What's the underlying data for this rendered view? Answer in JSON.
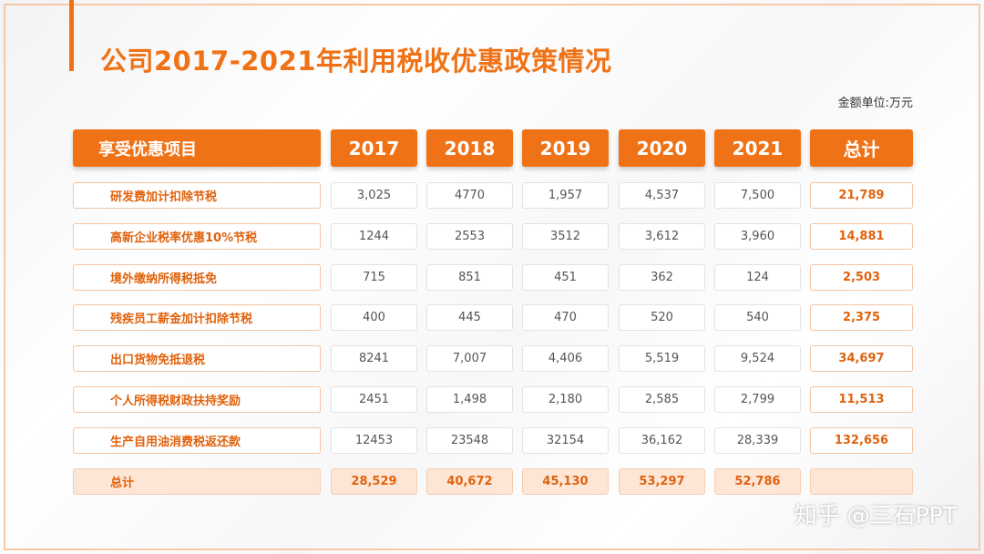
{
  "title": "公司2017-2021年利用税收优惠政策情况",
  "unit_label": "金额单位:万元",
  "watermark": "知乎 @三石PPT",
  "colors": {
    "accent": "#f07216",
    "sum_row_bg": "#fde6d6",
    "border": "#f4c4a0"
  },
  "chart_data": {
    "type": "table",
    "title": "公司2017-2021年利用税收优惠政策情况",
    "corner_header": "享受优惠项目",
    "columns": [
      "2017",
      "2018",
      "2019",
      "2020",
      "2021"
    ],
    "total_header": "总计",
    "rows": [
      {
        "label": "研发费加计扣除节税",
        "values": [
          "3,025",
          "4770",
          "1,957",
          "4,537",
          "7,500"
        ],
        "total": "21,789"
      },
      {
        "label": "高新企业税率优惠10%节税",
        "values": [
          "1244",
          "2553",
          "3512",
          "3,612",
          "3,960"
        ],
        "total": "14,881"
      },
      {
        "label": "境外缴纳所得税抵免",
        "values": [
          "715",
          "851",
          "451",
          "362",
          "124"
        ],
        "total": "2,503"
      },
      {
        "label": "残疾员工薪金加计扣除节税",
        "values": [
          "400",
          "445",
          "470",
          "520",
          "540"
        ],
        "total": "2,375"
      },
      {
        "label": "出口货物免抵退税",
        "values": [
          "8241",
          "7,007",
          "4,406",
          "5,519",
          "9,524"
        ],
        "total": "34,697"
      },
      {
        "label": "个人所得税财政扶持奖励",
        "values": [
          "2451",
          "1,498",
          "2,180",
          "2,585",
          "2,799"
        ],
        "total": "11,513"
      },
      {
        "label": "生产自用油消费税返还款",
        "values": [
          "12453",
          "23548",
          "32154",
          "36,162",
          "28,339"
        ],
        "total": "132,656"
      }
    ],
    "sum_row": {
      "label": "总计",
      "values": [
        "28,529",
        "40,672",
        "45,130",
        "53,297",
        "52,786"
      ],
      "total": ""
    }
  }
}
